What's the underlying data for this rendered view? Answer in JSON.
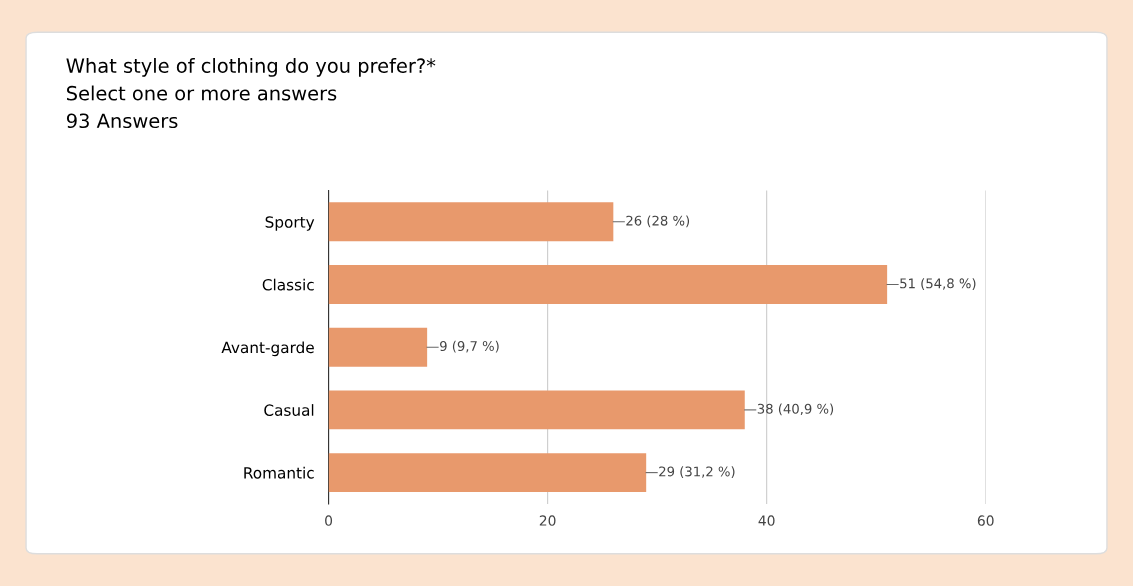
{
  "chart_data": {
    "type": "bar",
    "orientation": "horizontal",
    "title": "What style of clothing do you prefer?*",
    "subtitle": "Select one or more answers",
    "annotations": [
      "93 Answers"
    ],
    "categories": [
      "Sporty",
      "Classic",
      "Avant-garde",
      "Casual",
      "Romantic"
    ],
    "values": [
      26,
      51,
      9,
      38,
      29
    ],
    "value_labels": [
      "26 (28 %)",
      "51 (54,8 %)",
      "9 (9,7 %)",
      "38 (40,9 %)",
      "29 (31,2 %)"
    ],
    "color": "#e8996c",
    "xlim": [
      0,
      60
    ],
    "xticks": [
      0,
      20,
      40,
      60
    ],
    "grid": "x",
    "legend": false
  }
}
